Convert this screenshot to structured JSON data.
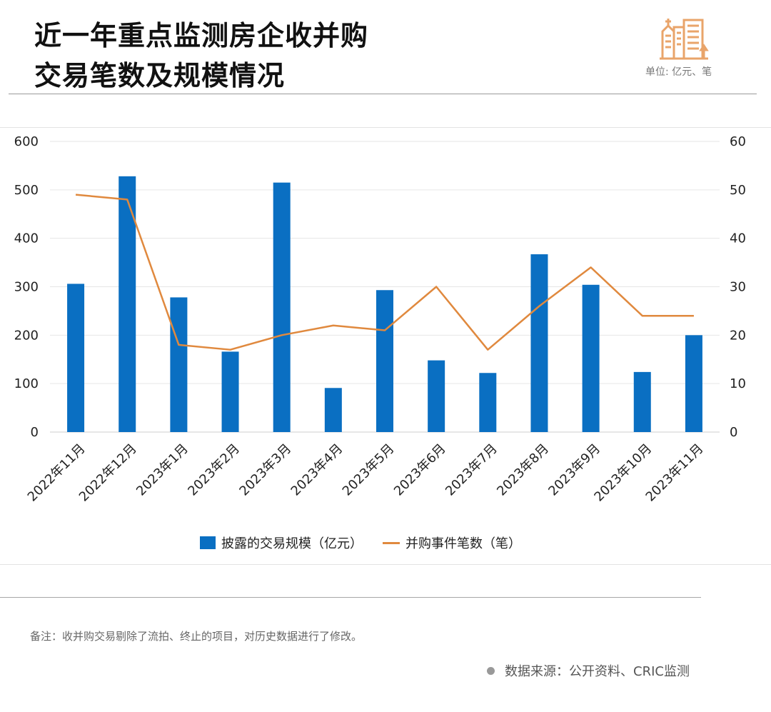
{
  "header": {
    "title_line1": "近一年重点监测房企收并购",
    "title_line2": "交易笔数及规模情况",
    "unit": "单位: 亿元、笔",
    "logo_icon": "city-buildings-icon"
  },
  "colors": {
    "bar": "#0a6fc2",
    "line": "#e0893e",
    "logo": "#e9a46a"
  },
  "chart_data": {
    "type": "bar+line",
    "categories": [
      "2022年11月",
      "2022年12月",
      "2023年1月",
      "2023年2月",
      "2023年3月",
      "2023年4月",
      "2023年5月",
      "2023年6月",
      "2023年7月",
      "2023年8月",
      "2023年9月",
      "2023年10月",
      "2023年11月"
    ],
    "series": [
      {
        "name": "披露的交易规模（亿元）",
        "type": "bar",
        "axis": "left",
        "values": [
          306,
          528,
          278,
          166,
          515,
          91,
          293,
          148,
          122,
          367,
          304,
          124,
          200
        ]
      },
      {
        "name": "并购事件笔数（笔）",
        "type": "line",
        "axis": "right",
        "values": [
          49,
          48,
          18,
          17,
          20,
          22,
          21,
          30,
          17,
          26,
          34,
          24,
          24
        ]
      }
    ],
    "y_left": {
      "min": 0,
      "max": 600,
      "ticks": [
        0,
        100,
        200,
        300,
        400,
        500,
        600
      ]
    },
    "y_right": {
      "min": 0,
      "max": 60,
      "ticks": [
        0,
        10,
        20,
        30,
        40,
        50,
        60
      ]
    },
    "grid": true,
    "legend_position": "bottom"
  },
  "footer": {
    "note": "备注：收并购交易剔除了流拍、终止的项目，对历史数据进行了修改。",
    "source": "数据来源：公开资料、CRIC监测"
  }
}
